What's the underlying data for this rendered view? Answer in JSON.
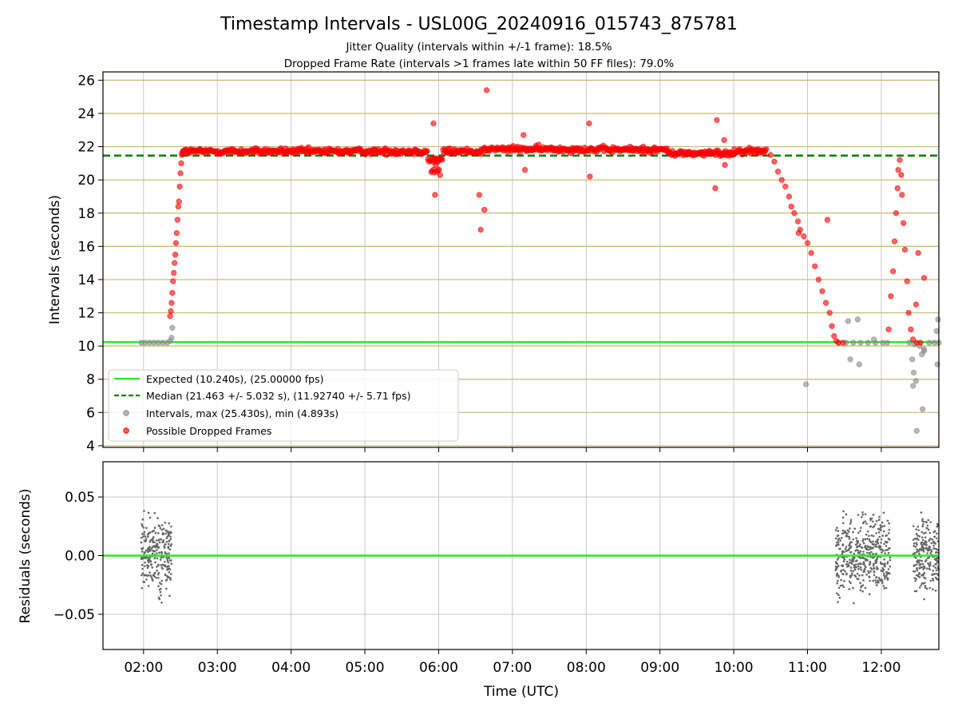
{
  "figure": {
    "title": "Timestamp Intervals - USL00G_20240916_015743_875781",
    "subtitle1": "Jitter Quality (intervals within +/-1 frame): 18.5%",
    "subtitle2": "Dropped Frame Rate (intervals >1 frames late within 50 FF files): 79.0%"
  },
  "colors": {
    "expected": "#22ee22",
    "median": "#008000",
    "intervals": "#888888",
    "dropped": "#ff0000",
    "hgrid": "#c8b870",
    "vgrid": "#c8c8c8",
    "residuals": "#666666"
  },
  "chart_data": [
    {
      "type": "scatter",
      "panel": "intervals",
      "ylabel": "Intervals (seconds)",
      "x_unit": "hours UTC",
      "xlim": [
        1.45,
        12.78
      ],
      "ylim": [
        3.9,
        26.5
      ],
      "yticks": [
        4,
        6,
        8,
        10,
        12,
        14,
        16,
        18,
        20,
        22,
        24,
        26
      ],
      "expected": 10.24,
      "median": 21.463,
      "legend": {
        "position": "lower-left",
        "entries": [
          "Expected (10.240s), (25.00000 fps)",
          "Median (21.463 +/- 5.032 s), (11.92740 +/- 5.71 fps)",
          "Intervals, max (25.430s), min (4.893s)",
          "Possible Dropped Frames"
        ]
      },
      "series": [
        {
          "name": "Intervals, max (25.430s), min (4.893s)",
          "points": [
            [
              1.97,
              10.2
            ],
            [
              2.02,
              10.2
            ],
            [
              2.08,
              10.2
            ],
            [
              2.14,
              10.2
            ],
            [
              2.2,
              10.2
            ],
            [
              2.26,
              10.2
            ],
            [
              2.32,
              10.2
            ],
            [
              2.36,
              10.3
            ],
            [
              2.38,
              10.5
            ],
            [
              2.39,
              11.1
            ],
            [
              11.42,
              10.2
            ],
            [
              11.52,
              10.2
            ],
            [
              11.62,
              10.2
            ],
            [
              11.72,
              10.2
            ],
            [
              11.82,
              10.2
            ],
            [
              11.92,
              10.2
            ],
            [
              12.02,
              10.2
            ],
            [
              12.08,
              10.2
            ],
            [
              11.55,
              11.5
            ],
            [
              11.68,
              11.6
            ],
            [
              11.58,
              9.2
            ],
            [
              11.7,
              8.9
            ],
            [
              10.98,
              7.7
            ],
            [
              11.9,
              10.4
            ],
            [
              12.38,
              10.2
            ],
            [
              12.45,
              10.1
            ],
            [
              12.52,
              10.0
            ],
            [
              12.58,
              9.8
            ],
            [
              12.65,
              10.2
            ],
            [
              12.72,
              10.2
            ],
            [
              12.78,
              10.2
            ],
            [
              12.42,
              9.2
            ],
            [
              12.44,
              8.4
            ],
            [
              12.43,
              7.6
            ],
            [
              12.47,
              7.9
            ],
            [
              12.48,
              4.9
            ],
            [
              12.56,
              6.2
            ],
            [
              12.55,
              9.5
            ],
            [
              12.58,
              9.7
            ],
            [
              12.75,
              10.9
            ],
            [
              12.77,
              11.6
            ],
            [
              12.76,
              8.9
            ]
          ]
        },
        {
          "name": "Possible Dropped Frames",
          "points": [
            [
              2.36,
              11.8
            ],
            [
              2.37,
              12.1
            ],
            [
              2.38,
              12.6
            ],
            [
              2.39,
              13.2
            ],
            [
              2.4,
              13.9
            ],
            [
              2.41,
              14.4
            ],
            [
              2.42,
              15.0
            ],
            [
              2.43,
              15.5
            ],
            [
              2.44,
              16.2
            ],
            [
              2.45,
              16.8
            ],
            [
              2.46,
              17.6
            ],
            [
              2.47,
              18.4
            ],
            [
              2.48,
              18.7
            ],
            [
              2.49,
              19.6
            ],
            [
              2.5,
              20.4
            ],
            [
              2.51,
              21.0
            ],
            [
              2.52,
              21.5
            ],
            [
              5.93,
              23.4
            ],
            [
              5.95,
              19.1
            ],
            [
              6.55,
              19.1
            ],
            [
              6.57,
              17.0
            ],
            [
              6.62,
              18.2
            ],
            [
              6.65,
              25.4
            ],
            [
              7.17,
              20.6
            ],
            [
              7.15,
              22.7
            ],
            [
              8.04,
              23.4
            ],
            [
              8.05,
              20.2
            ],
            [
              9.75,
              19.5
            ],
            [
              9.77,
              23.6
            ],
            [
              9.88,
              20.9
            ],
            [
              9.87,
              22.4
            ],
            [
              10.5,
              21.5
            ],
            [
              10.55,
              21.1
            ],
            [
              10.6,
              20.5
            ],
            [
              10.65,
              20.0
            ],
            [
              10.7,
              19.6
            ],
            [
              10.75,
              19.0
            ],
            [
              10.78,
              18.4
            ],
            [
              10.82,
              18.0
            ],
            [
              10.87,
              17.5
            ],
            [
              10.9,
              17.0
            ],
            [
              10.95,
              16.6
            ],
            [
              11.0,
              16.2
            ],
            [
              11.05,
              15.6
            ],
            [
              11.1,
              14.8
            ],
            [
              11.15,
              14.0
            ],
            [
              11.2,
              13.3
            ],
            [
              11.25,
              12.6
            ],
            [
              11.3,
              12.0
            ],
            [
              11.33,
              11.2
            ],
            [
              11.36,
              10.6
            ],
            [
              11.39,
              10.3
            ],
            [
              11.42,
              10.2
            ],
            [
              11.48,
              10.2
            ],
            [
              11.27,
              17.6
            ],
            [
              10.88,
              16.8
            ],
            [
              12.1,
              11.0
            ],
            [
              12.13,
              13.0
            ],
            [
              12.16,
              14.5
            ],
            [
              12.18,
              16.3
            ],
            [
              12.2,
              18.0
            ],
            [
              12.22,
              19.5
            ],
            [
              12.23,
              20.6
            ],
            [
              12.25,
              21.2
            ],
            [
              12.27,
              20.3
            ],
            [
              12.28,
              19.1
            ],
            [
              12.3,
              17.4
            ],
            [
              12.32,
              15.8
            ],
            [
              12.35,
              13.9
            ],
            [
              12.37,
              12.0
            ],
            [
              12.4,
              11.0
            ],
            [
              12.43,
              10.4
            ],
            [
              12.48,
              10.2
            ],
            [
              12.53,
              10.2
            ],
            [
              12.5,
              15.6
            ],
            [
              12.58,
              14.1
            ],
            [
              12.47,
              12.5
            ]
          ]
        }
      ]
    },
    {
      "type": "scatter",
      "panel": "residuals",
      "xlabel": "Time (UTC)",
      "ylabel": "Residuals (seconds)",
      "xlim": [
        1.45,
        12.78
      ],
      "ylim": [
        -0.08,
        0.08
      ],
      "yticks": [
        -0.05,
        0.0,
        0.05
      ],
      "ytick_labels": [
        "−0.05",
        "0.00",
        "0.05"
      ],
      "xticks": [
        2,
        3,
        4,
        5,
        6,
        7,
        8,
        9,
        10,
        11,
        12
      ],
      "xtick_labels": [
        "02:00",
        "03:00",
        "04:00",
        "05:00",
        "06:00",
        "07:00",
        "08:00",
        "09:00",
        "10:00",
        "11:00",
        "12:00"
      ],
      "baseline": 0.0,
      "clusters": [
        {
          "x_range": [
            1.97,
            2.38
          ],
          "count": 260
        },
        {
          "x_range": [
            11.38,
            12.12
          ],
          "count": 460
        },
        {
          "x_range": [
            12.43,
            12.78
          ],
          "count": 230
        }
      ]
    }
  ]
}
